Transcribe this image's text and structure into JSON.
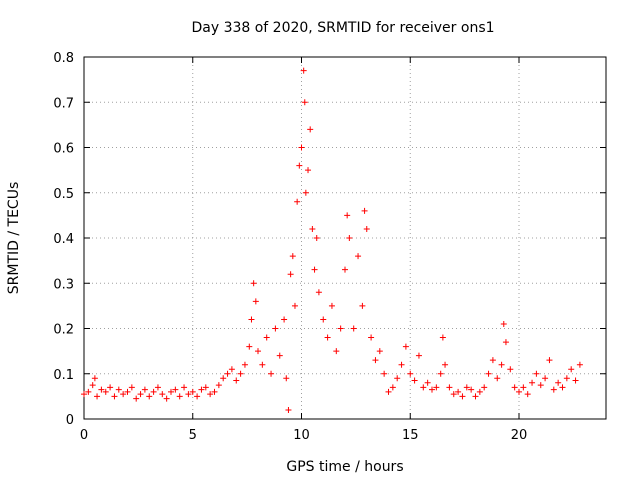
{
  "chart_data": {
    "type": "scatter",
    "title": "Day 338 of 2020, SRMTID for receiver ons1",
    "xlabel": "GPS time / hours",
    "ylabel": "SRMTID / TECUs",
    "xlim": [
      0,
      24
    ],
    "ylim": [
      0,
      0.8
    ],
    "x_ticks": [
      "0",
      "5",
      "10",
      "15",
      "20"
    ],
    "y_ticks": [
      "0",
      "0.1",
      "0.2",
      "0.3",
      "0.4",
      "0.5",
      "0.6",
      "0.7",
      "0.8"
    ],
    "x_tick_values": [
      0,
      5,
      10,
      15,
      20
    ],
    "y_tick_values": [
      0,
      0.1,
      0.2,
      0.3,
      0.4,
      0.5,
      0.6,
      0.7,
      0.8
    ],
    "marker": "+",
    "marker_color": "#ff0000",
    "grid": true,
    "series": [
      {
        "name": "SRMTID",
        "points": [
          [
            0.0,
            0.055
          ],
          [
            0.2,
            0.06
          ],
          [
            0.4,
            0.075
          ],
          [
            0.5,
            0.09
          ],
          [
            0.6,
            0.05
          ],
          [
            0.8,
            0.065
          ],
          [
            1.0,
            0.06
          ],
          [
            1.2,
            0.07
          ],
          [
            1.4,
            0.05
          ],
          [
            1.6,
            0.065
          ],
          [
            1.8,
            0.055
          ],
          [
            2.0,
            0.06
          ],
          [
            2.2,
            0.07
          ],
          [
            2.4,
            0.045
          ],
          [
            2.6,
            0.055
          ],
          [
            2.8,
            0.065
          ],
          [
            3.0,
            0.05
          ],
          [
            3.2,
            0.06
          ],
          [
            3.4,
            0.07
          ],
          [
            3.6,
            0.055
          ],
          [
            3.8,
            0.045
          ],
          [
            4.0,
            0.06
          ],
          [
            4.2,
            0.065
          ],
          [
            4.4,
            0.05
          ],
          [
            4.6,
            0.07
          ],
          [
            4.8,
            0.055
          ],
          [
            5.0,
            0.06
          ],
          [
            5.2,
            0.05
          ],
          [
            5.4,
            0.065
          ],
          [
            5.6,
            0.07
          ],
          [
            5.8,
            0.055
          ],
          [
            6.0,
            0.06
          ],
          [
            6.2,
            0.075
          ],
          [
            6.4,
            0.09
          ],
          [
            6.6,
            0.1
          ],
          [
            6.8,
            0.11
          ],
          [
            7.0,
            0.085
          ],
          [
            7.2,
            0.1
          ],
          [
            7.4,
            0.12
          ],
          [
            7.6,
            0.16
          ],
          [
            7.7,
            0.22
          ],
          [
            7.8,
            0.3
          ],
          [
            7.9,
            0.26
          ],
          [
            8.0,
            0.15
          ],
          [
            8.2,
            0.12
          ],
          [
            8.4,
            0.18
          ],
          [
            8.6,
            0.1
          ],
          [
            8.8,
            0.2
          ],
          [
            9.0,
            0.14
          ],
          [
            9.2,
            0.22
          ],
          [
            9.3,
            0.09
          ],
          [
            9.4,
            0.02
          ],
          [
            9.5,
            0.32
          ],
          [
            9.6,
            0.36
          ],
          [
            9.7,
            0.25
          ],
          [
            9.8,
            0.48
          ],
          [
            9.9,
            0.56
          ],
          [
            10.0,
            0.6
          ],
          [
            10.1,
            0.77
          ],
          [
            10.15,
            0.7
          ],
          [
            10.2,
            0.5
          ],
          [
            10.3,
            0.55
          ],
          [
            10.4,
            0.64
          ],
          [
            10.5,
            0.42
          ],
          [
            10.6,
            0.33
          ],
          [
            10.7,
            0.4
          ],
          [
            10.8,
            0.28
          ],
          [
            11.0,
            0.22
          ],
          [
            11.2,
            0.18
          ],
          [
            11.4,
            0.25
          ],
          [
            11.6,
            0.15
          ],
          [
            11.8,
            0.2
          ],
          [
            12.0,
            0.33
          ],
          [
            12.1,
            0.45
          ],
          [
            12.2,
            0.4
          ],
          [
            12.4,
            0.2
          ],
          [
            12.6,
            0.36
          ],
          [
            12.8,
            0.25
          ],
          [
            12.9,
            0.46
          ],
          [
            13.0,
            0.42
          ],
          [
            13.2,
            0.18
          ],
          [
            13.4,
            0.13
          ],
          [
            13.6,
            0.15
          ],
          [
            13.8,
            0.1
          ],
          [
            14.0,
            0.06
          ],
          [
            14.2,
            0.07
          ],
          [
            14.4,
            0.09
          ],
          [
            14.6,
            0.12
          ],
          [
            14.8,
            0.16
          ],
          [
            15.0,
            0.1
          ],
          [
            15.2,
            0.085
          ],
          [
            15.4,
            0.14
          ],
          [
            15.6,
            0.07
          ],
          [
            15.8,
            0.08
          ],
          [
            16.0,
            0.065
          ],
          [
            16.2,
            0.07
          ],
          [
            16.4,
            0.1
          ],
          [
            16.5,
            0.18
          ],
          [
            16.6,
            0.12
          ],
          [
            16.8,
            0.07
          ],
          [
            17.0,
            0.055
          ],
          [
            17.2,
            0.06
          ],
          [
            17.4,
            0.05
          ],
          [
            17.6,
            0.07
          ],
          [
            17.8,
            0.065
          ],
          [
            18.0,
            0.05
          ],
          [
            18.2,
            0.06
          ],
          [
            18.4,
            0.07
          ],
          [
            18.6,
            0.1
          ],
          [
            18.8,
            0.13
          ],
          [
            19.0,
            0.09
          ],
          [
            19.2,
            0.12
          ],
          [
            19.3,
            0.21
          ],
          [
            19.4,
            0.17
          ],
          [
            19.6,
            0.11
          ],
          [
            19.8,
            0.07
          ],
          [
            20.0,
            0.06
          ],
          [
            20.2,
            0.07
          ],
          [
            20.4,
            0.055
          ],
          [
            20.6,
            0.08
          ],
          [
            20.8,
            0.1
          ],
          [
            21.0,
            0.075
          ],
          [
            21.2,
            0.09
          ],
          [
            21.4,
            0.13
          ],
          [
            21.6,
            0.065
          ],
          [
            21.8,
            0.08
          ],
          [
            22.0,
            0.07
          ],
          [
            22.2,
            0.09
          ],
          [
            22.4,
            0.11
          ],
          [
            22.6,
            0.085
          ],
          [
            22.8,
            0.12
          ]
        ]
      }
    ]
  }
}
